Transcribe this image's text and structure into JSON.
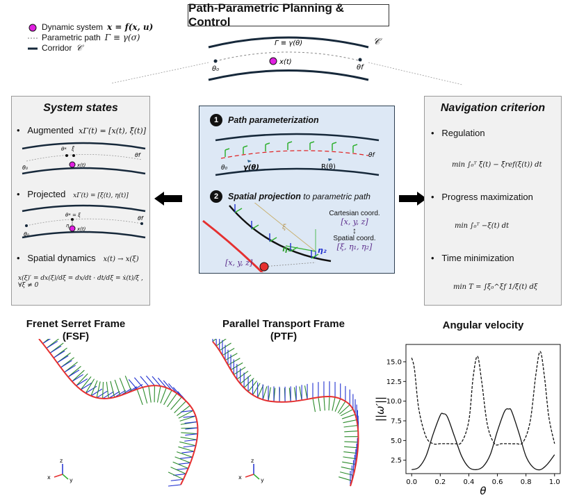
{
  "header": {
    "title": "Path-Parametric Planning & Control"
  },
  "legend": {
    "dynamic_system": "Dynamic system",
    "dynamic_system_eq": "x = f(x, u)",
    "parametric_path": "Parametric path",
    "parametric_path_eq": "Γ ≡ γ(σ)",
    "corridor": "Corridor",
    "corridor_sym": "𝒞"
  },
  "top_diagram": {
    "corridor_label": "𝒞",
    "gamma_label": "Γ ≡ γ(θ)",
    "theta0": "θ₀",
    "thetaf": "θf",
    "point_label": "x(t)"
  },
  "left_panel": {
    "title": "System states",
    "augmented_label": "Augmented",
    "augmented_eq": "xΓ(t) = [x(t), ξ̃(t)]",
    "projected_label": "Projected",
    "projected_eq": "xΓ(t) = [ξ(t), η(t)]",
    "spatial_label": "Spatial dynamics",
    "spatial_eq": "x(t) → x(ξ)",
    "spatial_formula": "x(ξ)′ = dx(ξ)/dξ = dx/dt · dt/dξ = ẋ(t)/ξ̇ ,  ∀ξ̇ ≠ 0",
    "theta0": "θ₀",
    "thetaf": "θf",
    "theta_star": "θ*",
    "xi_tilde": "ξ̃",
    "theta_star_eq": "θ* = ξ",
    "eta": "η",
    "xt": "x(t)"
  },
  "center_panel": {
    "step1_num": "1",
    "step1_title": "Path parameterization",
    "step2_num": "2",
    "step2_title": "Spatial projection",
    "step2_suffix": "to parametric path",
    "gamma": "γ(θ)",
    "R": "R(θ)",
    "theta0": "θ₀",
    "thetaf": "θf",
    "xi": "ξ",
    "eta1": "η₁",
    "eta2": "η₂",
    "cartesian_label": "Cartesian coord.",
    "cartesian_vec": "[x, y, z]",
    "spatial_label": "Spatial coord.",
    "spatial_vec": "[ξ, η₁, η₂]",
    "point_vec": "[x, y, z]",
    "double_arrow": "↕"
  },
  "right_panel": {
    "title": "Navigation criterion",
    "regulation_label": "Regulation",
    "regulation_eq": "min ∫₀ᵀ ξ̇(t) − ξ̇ref(ξ(t)) dt",
    "progress_label": "Progress maximization",
    "progress_eq": "min ∫₀ᵀ −ξ(t) dt",
    "time_label": "Time minimization",
    "time_eq": "min T = ∫ξ₀^ξf 1/ξ̇(t) dξ"
  },
  "bottom": {
    "fsf_title_1": "Frenet Serret Frame",
    "fsf_title_2": "(FSF)",
    "ptf_title_1": "Parallel Transport Frame",
    "ptf_title_2": "(PTF)",
    "angular_title": "Angular velocity",
    "axis_z": "z",
    "axis_x": "x",
    "axis_y": "y"
  },
  "chart_data": {
    "type": "line",
    "title": "Angular velocity",
    "xlabel": "θ",
    "ylabel": "||ω′||",
    "xlim": [
      -0.04,
      1.04
    ],
    "ylim": [
      0.8,
      17.2
    ],
    "xticks": [
      0.0,
      0.2,
      0.4,
      0.6,
      0.8,
      1.0
    ],
    "xtick_labels": [
      "0.0",
      "0.2",
      "0.4",
      "0.6",
      "0.8",
      "1.0"
    ],
    "yticks": [
      2.5,
      5.0,
      7.5,
      10.0,
      12.5,
      15.0
    ],
    "ytick_labels": [
      "2.5",
      "5.0",
      "7.5",
      "10.0",
      "12.5",
      "15.0"
    ],
    "series": [
      {
        "style": "solid",
        "x": [
          0.0,
          0.05,
          0.1,
          0.15,
          0.2,
          0.22,
          0.25,
          0.3,
          0.35,
          0.4,
          0.45,
          0.5,
          0.55,
          0.6,
          0.65,
          0.68,
          0.7,
          0.75,
          0.8,
          0.85,
          0.9,
          0.95,
          1.0
        ],
        "y": [
          1.3,
          1.6,
          3.0,
          5.8,
          8.2,
          8.4,
          8.0,
          5.5,
          3.0,
          1.6,
          1.3,
          1.7,
          3.2,
          6.2,
          8.7,
          9.0,
          8.7,
          6.0,
          3.0,
          1.6,
          1.3,
          2.0,
          3.2
        ]
      },
      {
        "style": "dashed",
        "x": [
          0.0,
          0.02,
          0.05,
          0.1,
          0.15,
          0.2,
          0.25,
          0.3,
          0.35,
          0.4,
          0.43,
          0.46,
          0.49,
          0.53,
          0.58,
          0.63,
          0.68,
          0.73,
          0.78,
          0.83,
          0.87,
          0.9,
          0.93,
          0.96,
          1.0
        ],
        "y": [
          15.5,
          14.0,
          9.0,
          5.5,
          4.6,
          4.6,
          4.6,
          4.6,
          4.8,
          7.5,
          13.0,
          15.7,
          12.5,
          7.0,
          4.6,
          4.6,
          4.6,
          4.6,
          4.8,
          7.5,
          13.5,
          16.3,
          13.0,
          8.0,
          4.6
        ]
      }
    ]
  }
}
